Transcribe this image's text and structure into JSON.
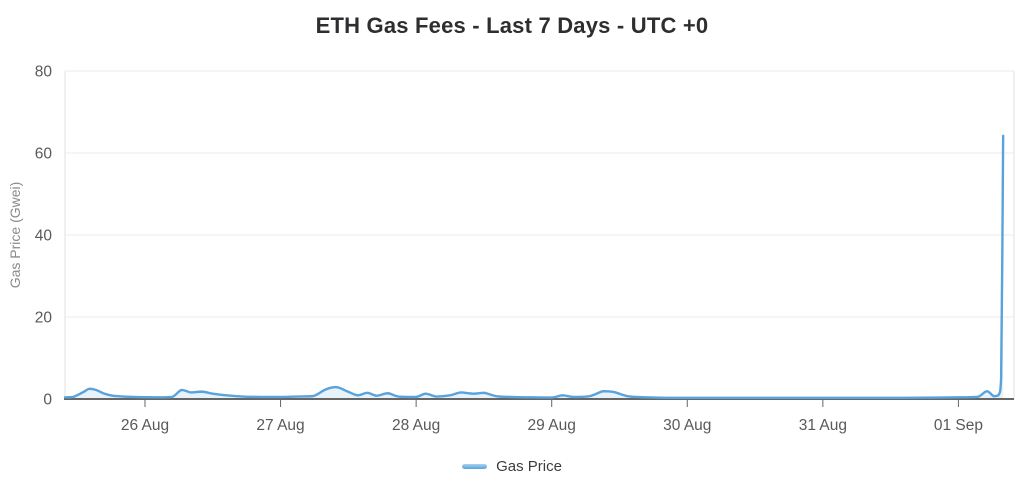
{
  "chart_data": {
    "type": "line",
    "title": "ETH Gas Fees - Last 7 Days - UTC +0",
    "xlabel": "",
    "ylabel": "Gas Price (Gwei)",
    "legend": [
      "Gas Price"
    ],
    "legend_position": "bottom",
    "grid": "horizontal",
    "x_tick_labels": [
      "26 Aug",
      "27 Aug",
      "28 Aug",
      "29 Aug",
      "30 Aug",
      "31 Aug",
      "01 Sep"
    ],
    "x_tick_days": [
      0,
      1,
      2,
      3,
      4,
      5,
      6
    ],
    "y_ticks": [
      0,
      20,
      40,
      60,
      80
    ],
    "xlim": [
      -0.59,
      6.41
    ],
    "ylim": [
      0,
      80
    ],
    "x_unit": "days since 26 Aug 00:00 UTC",
    "y_unit": "Gwei",
    "series": [
      {
        "name": "Gas Price",
        "points": [
          [
            -0.59,
            0.4
          ],
          [
            -0.53,
            0.5
          ],
          [
            -0.46,
            1.6
          ],
          [
            -0.41,
            2.5
          ],
          [
            -0.36,
            2.2
          ],
          [
            -0.3,
            1.3
          ],
          [
            -0.24,
            0.8
          ],
          [
            -0.16,
            0.6
          ],
          [
            -0.08,
            0.5
          ],
          [
            0.0,
            0.45
          ],
          [
            0.1,
            0.4
          ],
          [
            0.2,
            0.5
          ],
          [
            0.27,
            2.2
          ],
          [
            0.34,
            1.6
          ],
          [
            0.42,
            1.8
          ],
          [
            0.5,
            1.3
          ],
          [
            0.6,
            0.9
          ],
          [
            0.72,
            0.6
          ],
          [
            0.85,
            0.5
          ],
          [
            1.0,
            0.5
          ],
          [
            1.12,
            0.6
          ],
          [
            1.24,
            0.7
          ],
          [
            1.33,
            2.3
          ],
          [
            1.41,
            2.9
          ],
          [
            1.49,
            1.9
          ],
          [
            1.57,
            0.9
          ],
          [
            1.64,
            1.5
          ],
          [
            1.71,
            0.8
          ],
          [
            1.79,
            1.4
          ],
          [
            1.87,
            0.6
          ],
          [
            2.0,
            0.5
          ],
          [
            2.07,
            1.3
          ],
          [
            2.15,
            0.6
          ],
          [
            2.25,
            0.9
          ],
          [
            2.33,
            1.6
          ],
          [
            2.42,
            1.3
          ],
          [
            2.5,
            1.5
          ],
          [
            2.59,
            0.7
          ],
          [
            2.7,
            0.5
          ],
          [
            2.85,
            0.4
          ],
          [
            3.0,
            0.35
          ],
          [
            3.08,
            0.9
          ],
          [
            3.16,
            0.5
          ],
          [
            3.28,
            0.7
          ],
          [
            3.38,
            1.9
          ],
          [
            3.46,
            1.7
          ],
          [
            3.56,
            0.7
          ],
          [
            3.7,
            0.4
          ],
          [
            3.85,
            0.3
          ],
          [
            4.0,
            0.3
          ],
          [
            4.25,
            0.3
          ],
          [
            4.5,
            0.3
          ],
          [
            4.75,
            0.3
          ],
          [
            5.0,
            0.3
          ],
          [
            5.3,
            0.3
          ],
          [
            5.6,
            0.3
          ],
          [
            5.85,
            0.35
          ],
          [
            6.0,
            0.4
          ],
          [
            6.08,
            0.45
          ],
          [
            6.15,
            0.6
          ],
          [
            6.21,
            1.9
          ],
          [
            6.26,
            0.7
          ],
          [
            6.295,
            0.9
          ],
          [
            6.315,
            5
          ],
          [
            6.33,
            64.2
          ]
        ]
      }
    ],
    "colors": {
      "line": "#58A3DB",
      "legend_marker_top": "#A9D2F0",
      "area_fill": "rgba(88,163,219,0.14)",
      "grid": "#ebebeb",
      "plot_border": "#e2e2e2",
      "axis": "#666666",
      "tick_text": "#58595b",
      "axis_title_text": "#8a8b8d",
      "title_text": "#2e2e30",
      "legend_text": "#3c3d3f"
    }
  }
}
